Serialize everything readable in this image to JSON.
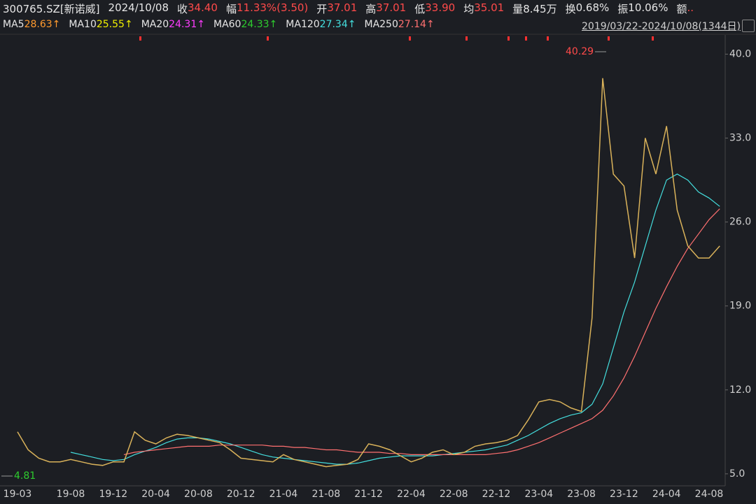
{
  "chart_data": {
    "type": "line",
    "title": "300765.SZ[新诺威]",
    "date": "2024/10/08",
    "quote": [
      {
        "label": "收",
        "value": "34.40",
        "color": "#ff4a4a"
      },
      {
        "label": "幅",
        "value": "11.33%(3.50)",
        "color": "#ff4a4a"
      },
      {
        "label": "开",
        "value": "37.01",
        "color": "#ff4a4a"
      },
      {
        "label": "高",
        "value": "37.01",
        "color": "#ff4a4a"
      },
      {
        "label": "低",
        "value": "33.90",
        "color": "#ff4a4a"
      },
      {
        "label": "均",
        "value": "35.01",
        "color": "#ff4a4a"
      },
      {
        "label": "量",
        "value": "8.45万",
        "color": "#e6e6e6"
      },
      {
        "label": "换",
        "value": "0.68%",
        "color": "#e6e6e6"
      },
      {
        "label": "振",
        "value": "10.06%",
        "color": "#e6e6e6"
      },
      {
        "label": "额",
        "value": "..",
        "color": "#ff4a4a"
      }
    ],
    "range": "2019/03/22-2024/10/08(1344日)",
    "categories": [
      "19-03",
      null,
      null,
      null,
      null,
      "19-08",
      null,
      null,
      null,
      "19-12",
      null,
      null,
      null,
      "20-04",
      null,
      null,
      null,
      "20-08",
      null,
      null,
      null,
      "20-12",
      null,
      null,
      null,
      "21-04",
      null,
      null,
      null,
      "21-08",
      null,
      null,
      null,
      "21-12",
      null,
      null,
      null,
      "22-04",
      null,
      null,
      null,
      "22-08",
      null,
      null,
      null,
      "22-12",
      null,
      null,
      null,
      "23-04",
      null,
      null,
      null,
      "23-08",
      null,
      null,
      null,
      "23-12",
      null,
      null,
      null,
      "24-04",
      null,
      null,
      null,
      "24-08",
      null
    ],
    "values": [
      8.5,
      7.0,
      6.3,
      6.0,
      6.0,
      6.2,
      6.0,
      5.8,
      5.7,
      6.0,
      6.0,
      8.5,
      7.8,
      7.5,
      8.0,
      8.3,
      8.2,
      8.0,
      7.8,
      7.6,
      7.0,
      6.3,
      6.2,
      6.1,
      6.0,
      6.6,
      6.2,
      6.0,
      5.8,
      5.6,
      5.7,
      5.8,
      6.2,
      7.5,
      7.3,
      7.0,
      6.5,
      6.0,
      6.3,
      6.8,
      7.0,
      6.6,
      6.8,
      7.3,
      7.5,
      7.6,
      7.8,
      8.2,
      9.5,
      11.0,
      11.2,
      11.0,
      10.5,
      10.2,
      18.0,
      38.0,
      30.0,
      29.0,
      23.0,
      33.0,
      30.0,
      34.0,
      27.0,
      24.0,
      23.0,
      23.0,
      24.0
    ],
    "color": "#d9b25a",
    "series": [
      {
        "name": "MA5",
        "value_label": "28.63↑",
        "color": "#ff9a2e"
      },
      {
        "name": "MA10",
        "value_label": "25.55↑",
        "color": "#f0f000"
      },
      {
        "name": "MA20",
        "value_label": "24.31↑",
        "color": "#ff3cff"
      },
      {
        "name": "MA60",
        "value_label": "24.33↑",
        "color": "#2ecc2e"
      },
      {
        "name": "MA120",
        "value_label": "27.34↑",
        "color": "#44dede",
        "values": [
          null,
          null,
          null,
          null,
          null,
          6.8,
          6.6,
          6.4,
          6.2,
          6.1,
          6.2,
          6.6,
          6.9,
          7.2,
          7.6,
          7.9,
          8.0,
          8.0,
          7.9,
          7.7,
          7.5,
          7.2,
          6.9,
          6.6,
          6.4,
          6.3,
          6.2,
          6.1,
          6.0,
          5.9,
          5.8,
          5.8,
          5.9,
          6.1,
          6.3,
          6.4,
          6.5,
          6.5,
          6.5,
          6.5,
          6.6,
          6.7,
          6.8,
          6.9,
          7.0,
          7.2,
          7.4,
          7.8,
          8.2,
          8.7,
          9.2,
          9.6,
          9.9,
          10.1,
          10.8,
          12.5,
          15.5,
          18.5,
          21,
          24,
          27,
          29.5,
          30,
          29.5,
          28.5,
          28,
          27.3
        ]
      },
      {
        "name": "MA250",
        "value_label": "27.14↑",
        "color": "#ff7070",
        "values": [
          null,
          null,
          null,
          null,
          null,
          null,
          null,
          null,
          null,
          null,
          6.6,
          6.8,
          6.9,
          7.0,
          7.1,
          7.2,
          7.3,
          7.3,
          7.3,
          7.4,
          7.4,
          7.4,
          7.4,
          7.4,
          7.3,
          7.3,
          7.2,
          7.2,
          7.1,
          7.0,
          7.0,
          6.9,
          6.8,
          6.8,
          6.8,
          6.7,
          6.7,
          6.6,
          6.6,
          6.6,
          6.6,
          6.6,
          6.6,
          6.6,
          6.6,
          6.7,
          6.8,
          7.0,
          7.3,
          7.6,
          8.0,
          8.4,
          8.8,
          9.2,
          9.6,
          10.3,
          11.5,
          13.0,
          14.8,
          16.8,
          18.8,
          20.6,
          22.3,
          23.8,
          25.0,
          26.2,
          27.1
        ]
      }
    ],
    "max_label": 40.29,
    "min_label": 4.81,
    "ylim": [
      4.0,
      41.6
    ],
    "yticks": [
      {
        "value": 5,
        "label": "5.0"
      },
      {
        "value": 12,
        "label": "12.0"
      },
      {
        "value": 19,
        "label": "19.0"
      },
      {
        "value": 26,
        "label": "26.0"
      },
      {
        "value": 33,
        "label": "33.0"
      },
      {
        "value": 40,
        "label": "40.0"
      }
    ]
  }
}
